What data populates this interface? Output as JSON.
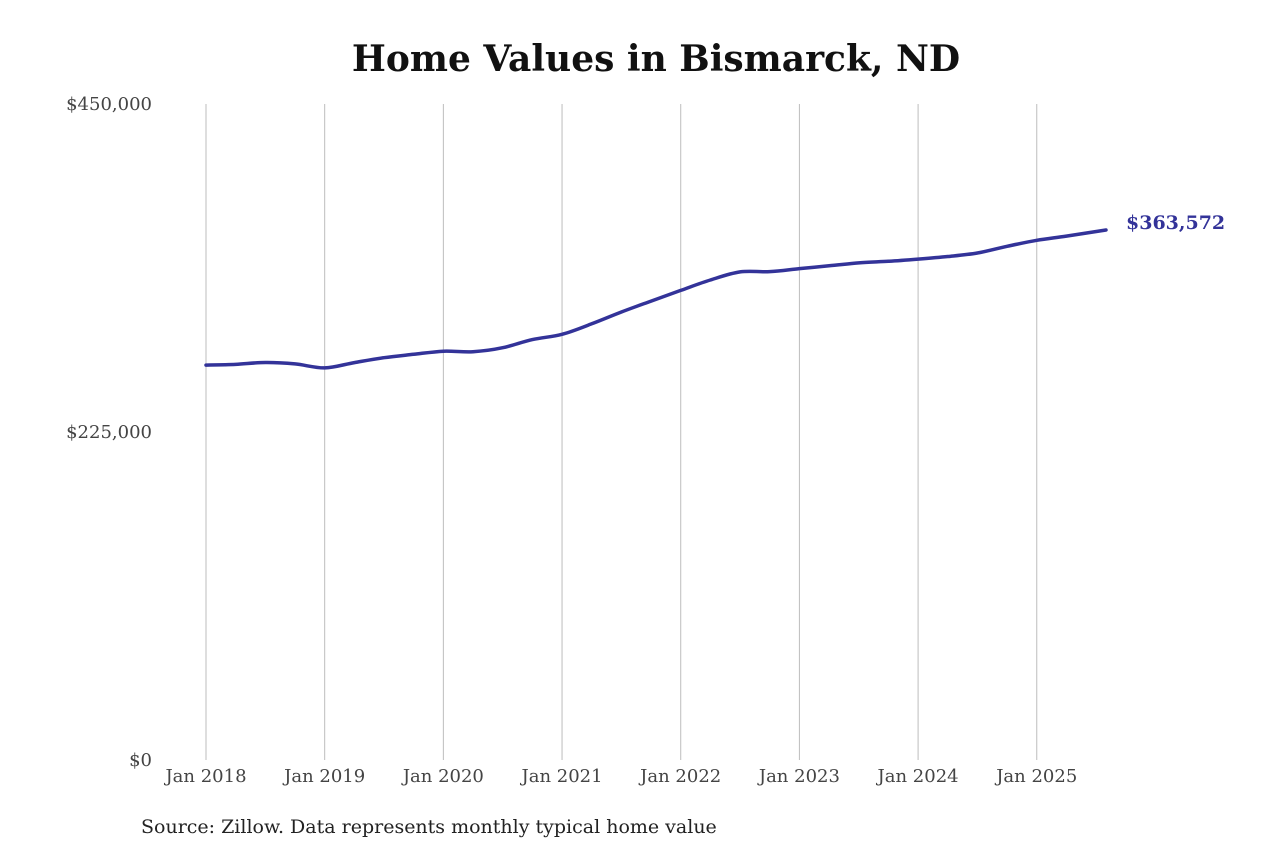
{
  "chart_data": {
    "type": "line",
    "title": "Home Values in Bismarck, ND",
    "source": "Source: Zillow. Data represents monthly typical home value",
    "ylim": [
      0,
      450000
    ],
    "yticks": [
      0,
      225000,
      450000
    ],
    "ytick_labels": [
      "$0",
      "$225,000",
      "$450,000"
    ],
    "xlim": [
      "2018-01",
      "2025-08"
    ],
    "xticks": [
      "2018-01",
      "2019-01",
      "2020-01",
      "2021-01",
      "2022-01",
      "2023-01",
      "2024-01",
      "2025-01"
    ],
    "xtick_labels": [
      "Jan 2018",
      "Jan 2019",
      "Jan 2020",
      "Jan 2021",
      "Jan 2022",
      "Jan 2023",
      "Jan 2024",
      "Jan 2025"
    ],
    "grid": "vertical",
    "line_color": "#333399",
    "end_label": "$363,572",
    "series": [
      {
        "x": [
          "2018-01",
          "2018-04",
          "2018-07",
          "2018-10",
          "2019-01",
          "2019-04",
          "2019-07",
          "2019-10",
          "2020-01",
          "2020-04",
          "2020-07",
          "2020-10",
          "2021-01",
          "2021-04",
          "2021-07",
          "2021-10",
          "2022-01",
          "2022-04",
          "2022-07",
          "2022-10",
          "2023-01",
          "2023-04",
          "2023-07",
          "2023-10",
          "2024-01",
          "2024-04",
          "2024-07",
          "2024-10",
          "2025-01",
          "2025-04",
          "2025-08"
        ],
        "values": [
          270900,
          271400,
          272700,
          271700,
          269000,
          272600,
          276000,
          278300,
          280400,
          280100,
          282800,
          288400,
          292000,
          299200,
          307300,
          314800,
          322100,
          329300,
          334800,
          335000,
          337100,
          339000,
          341000,
          342100,
          343600,
          345400,
          347800,
          352400,
          356500,
          359400,
          363572
        ]
      }
    ]
  }
}
